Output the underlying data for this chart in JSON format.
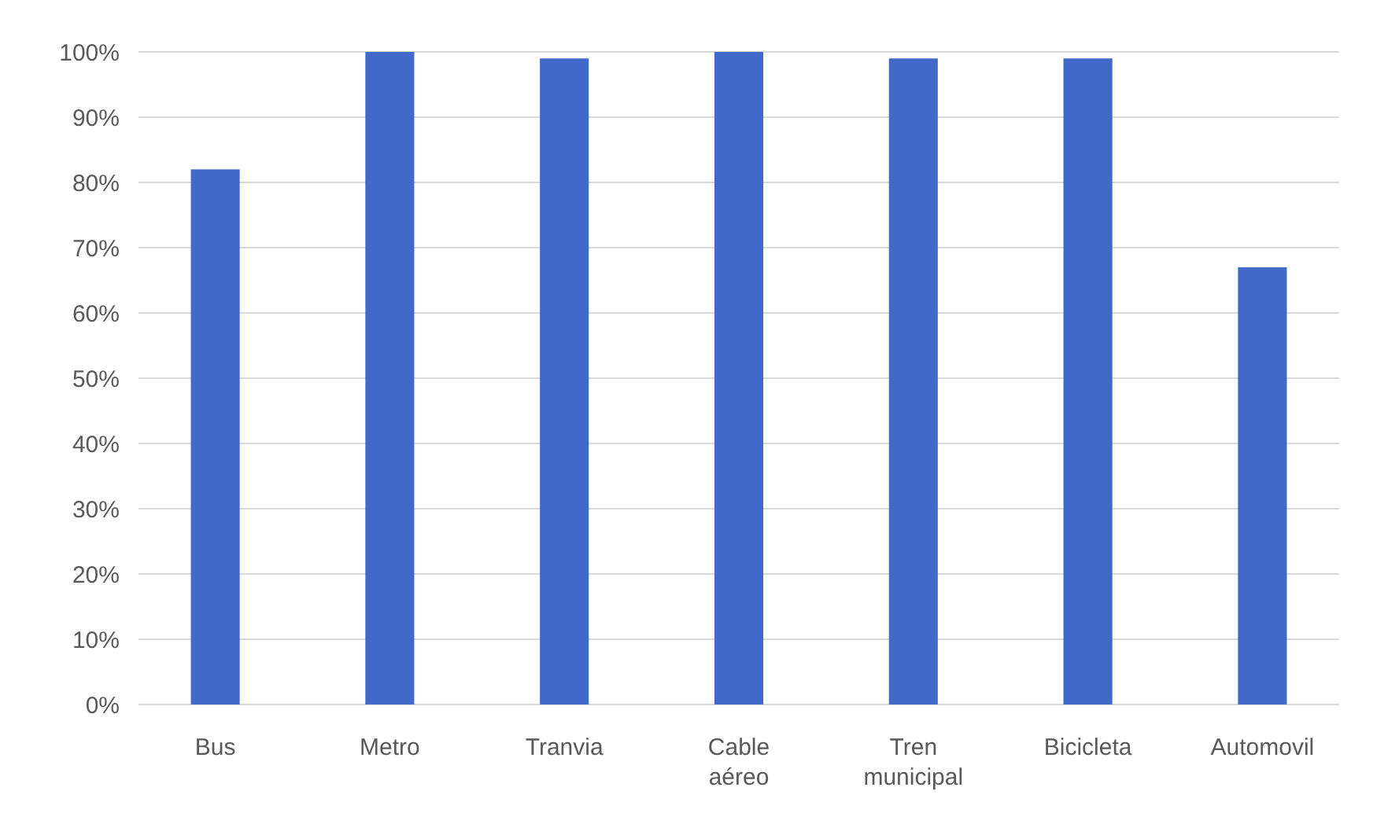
{
  "chart_data": {
    "type": "bar",
    "categories": [
      "Bus",
      "Metro",
      "Tranvia",
      "Cable aéreo",
      "Tren municipal",
      "Bicicleta",
      "Automovil"
    ],
    "values": [
      82,
      100,
      99,
      100,
      99,
      99,
      67
    ],
    "color": "#4169c9",
    "ylim": [
      0,
      100
    ],
    "yticks": [
      {
        "value": 0,
        "label": "0%"
      },
      {
        "value": 10,
        "label": "10%"
      },
      {
        "value": 20,
        "label": "20%"
      },
      {
        "value": 30,
        "label": "30%"
      },
      {
        "value": 40,
        "label": "40%"
      },
      {
        "value": 50,
        "label": "50%"
      },
      {
        "value": 60,
        "label": "60%"
      },
      {
        "value": 70,
        "label": "70%"
      },
      {
        "value": 80,
        "label": "80%"
      },
      {
        "value": 90,
        "label": "90%"
      },
      {
        "value": 100,
        "label": "100%"
      }
    ],
    "grid": "y"
  }
}
